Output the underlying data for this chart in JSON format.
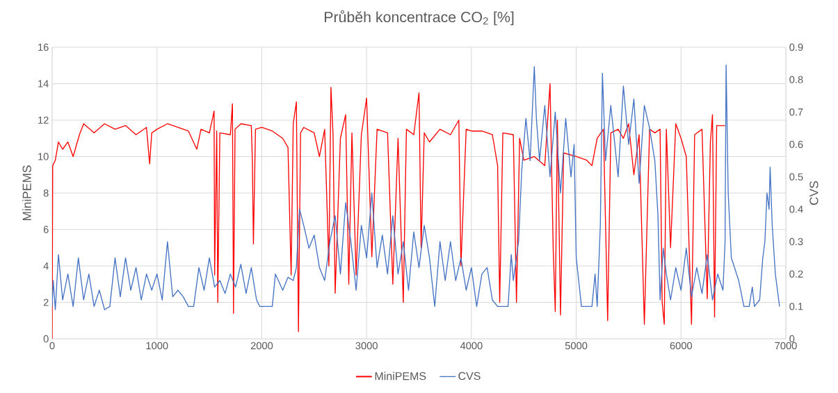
{
  "chart_data": {
    "type": "line",
    "title": "Průběh koncentrace CO$_{2}$ [%]",
    "ylabel": "MiniPEMS",
    "y2label": "CVS",
    "xlim": [
      0,
      7000
    ],
    "xticks": [
      0,
      1000,
      2000,
      3000,
      4000,
      5000,
      6000,
      7000
    ],
    "ylim": [
      0,
      16
    ],
    "yticks": [
      0,
      2,
      4,
      6,
      8,
      10,
      12,
      14,
      16
    ],
    "y2lim": [
      0,
      0.9
    ],
    "y2ticks": [
      0,
      0.1,
      0.2,
      0.3,
      0.4,
      0.5,
      0.6,
      0.7,
      0.8,
      0.9
    ],
    "grid": true,
    "legend": "bottom",
    "marker": "none",
    "line_style": "solid",
    "series": [
      {
        "name": "MiniPEMS",
        "color": "#ff0000",
        "x": [
          0,
          5,
          30,
          60,
          100,
          150,
          200,
          260,
          300,
          400,
          500,
          600,
          700,
          800,
          900,
          930,
          950,
          1000,
          1100,
          1200,
          1300,
          1380,
          1420,
          1500,
          1545,
          1550,
          1570,
          1580,
          1600,
          1700,
          1720,
          1730,
          1745,
          1800,
          1900,
          1910,
          1920,
          1940,
          2000,
          2100,
          2200,
          2250,
          2280,
          2300,
          2330,
          2350,
          2370,
          2400,
          2500,
          2550,
          2600,
          2640,
          2660,
          2680,
          2700,
          2750,
          2800,
          2830,
          2860,
          2900,
          2950,
          3000,
          3050,
          3100,
          3200,
          3250,
          3300,
          3350,
          3380,
          3450,
          3500,
          3520,
          3550,
          3600,
          3700,
          3800,
          3880,
          3900,
          3950,
          4000,
          4100,
          4200,
          4250,
          4270,
          4300,
          4400,
          4430,
          4460,
          4500,
          4600,
          4700,
          4750,
          4780,
          4800,
          4820,
          4850,
          4880,
          5000,
          5100,
          5150,
          5200,
          5260,
          5300,
          5330,
          5400,
          5450,
          5500,
          5550,
          5600,
          5650,
          5700,
          5750,
          5800,
          5820,
          5840,
          5860,
          5900,
          5950,
          6000,
          6050,
          6100,
          6130,
          6200,
          6250,
          6280,
          6300,
          6320,
          6340,
          6420
        ],
        "values": [
          0,
          9.5,
          9.8,
          10.8,
          10.4,
          10.8,
          10.0,
          11.2,
          11.8,
          11.3,
          11.8,
          11.5,
          11.7,
          11.2,
          11.6,
          9.6,
          11.3,
          11.5,
          11.8,
          11.6,
          11.4,
          10.4,
          11.5,
          11.3,
          12.5,
          3.5,
          11.4,
          2.0,
          11.3,
          11.2,
          12.9,
          1.4,
          11.5,
          11.8,
          11.7,
          9.8,
          5.2,
          11.5,
          11.6,
          11.4,
          11.0,
          10.5,
          3.5,
          11.8,
          13.0,
          0.4,
          11.3,
          11.6,
          11.3,
          10.0,
          11.5,
          4.0,
          13.8,
          11.2,
          2.5,
          11.0,
          12.3,
          3.0,
          11.3,
          3.5,
          11.2,
          13.2,
          4.5,
          11.5,
          11.3,
          3.0,
          11.0,
          2.0,
          11.5,
          11.2,
          13.5,
          5.0,
          11.3,
          10.8,
          11.5,
          11.2,
          12.0,
          4.0,
          11.5,
          11.4,
          11.4,
          11.2,
          9.5,
          2.0,
          11.3,
          11.2,
          2.0,
          11.0,
          9.8,
          10.0,
          9.5,
          14.0,
          5.0,
          1.5,
          12.0,
          1.3,
          10.2,
          10.0,
          9.8,
          9.5,
          11.0,
          11.5,
          1.0,
          11.3,
          11.5,
          11.0,
          11.8,
          9.0,
          11.2,
          0.8,
          11.5,
          11.3,
          11.5,
          2.0,
          0.8,
          11.5,
          5.0,
          11.8,
          11.0,
          10.0,
          0.8,
          11.2,
          11.5,
          2.2,
          10.8,
          12.3,
          1.2,
          11.7,
          11.7
        ]
      },
      {
        "name": "CVS",
        "color": "#4472c4",
        "axis": "y2",
        "x": [
          0,
          10,
          30,
          60,
          100,
          150,
          200,
          250,
          300,
          350,
          400,
          450,
          500,
          550,
          600,
          650,
          700,
          750,
          800,
          850,
          900,
          950,
          1000,
          1050,
          1100,
          1150,
          1200,
          1250,
          1300,
          1350,
          1400,
          1450,
          1500,
          1550,
          1600,
          1650,
          1700,
          1750,
          1800,
          1850,
          1900,
          1950,
          1980,
          2100,
          2130,
          2200,
          2250,
          2300,
          2330,
          2360,
          2400,
          2450,
          2500,
          2550,
          2600,
          2650,
          2700,
          2750,
          2800,
          2850,
          2900,
          2950,
          3000,
          3050,
          3100,
          3150,
          3200,
          3250,
          3300,
          3350,
          3400,
          3450,
          3500,
          3550,
          3600,
          3650,
          3700,
          3750,
          3800,
          3850,
          3900,
          3950,
          4000,
          4050,
          4100,
          4150,
          4200,
          4250,
          4350,
          4380,
          4400,
          4450,
          4480,
          4520,
          4560,
          4600,
          4620,
          4650,
          4700,
          4750,
          4800,
          4850,
          4900,
          4950,
          4980,
          5000,
          5050,
          5150,
          5180,
          5200,
          5230,
          5250,
          5280,
          5330,
          5400,
          5450,
          5500,
          5550,
          5600,
          5650,
          5700,
          5750,
          5780,
          5800,
          5830,
          5860,
          5900,
          5950,
          6000,
          6050,
          6100,
          6150,
          6200,
          6250,
          6300,
          6350,
          6400,
          6420,
          6430,
          6450,
          6480,
          6550,
          6600,
          6650,
          6680,
          6700,
          6750,
          6780,
          6800,
          6820,
          6840,
          6850,
          6870,
          6900,
          6920,
          6940
        ],
        "values": [
          0.1,
          0.18,
          0.09,
          0.26,
          0.12,
          0.2,
          0.1,
          0.25,
          0.12,
          0.2,
          0.1,
          0.15,
          0.09,
          0.1,
          0.25,
          0.13,
          0.25,
          0.15,
          0.22,
          0.12,
          0.2,
          0.15,
          0.2,
          0.12,
          0.3,
          0.13,
          0.15,
          0.13,
          0.1,
          0.1,
          0.22,
          0.15,
          0.25,
          0.16,
          0.18,
          0.14,
          0.2,
          0.16,
          0.23,
          0.14,
          0.22,
          0.12,
          0.1,
          0.1,
          0.2,
          0.15,
          0.19,
          0.18,
          0.22,
          0.4,
          0.35,
          0.28,
          0.32,
          0.22,
          0.18,
          0.3,
          0.38,
          0.2,
          0.42,
          0.3,
          0.15,
          0.35,
          0.25,
          0.45,
          0.22,
          0.32,
          0.2,
          0.38,
          0.2,
          0.3,
          0.15,
          0.33,
          0.22,
          0.35,
          0.25,
          0.1,
          0.3,
          0.18,
          0.3,
          0.18,
          0.25,
          0.15,
          0.22,
          0.1,
          0.2,
          0.22,
          0.12,
          0.1,
          0.1,
          0.26,
          0.18,
          0.3,
          0.52,
          0.68,
          0.55,
          0.84,
          0.68,
          0.55,
          0.72,
          0.5,
          0.7,
          0.45,
          0.68,
          0.5,
          0.6,
          0.25,
          0.1,
          0.1,
          0.2,
          0.1,
          0.35,
          0.82,
          0.55,
          0.72,
          0.5,
          0.78,
          0.6,
          0.74,
          0.48,
          0.72,
          0.65,
          0.55,
          0.38,
          0.12,
          0.28,
          0.2,
          0.12,
          0.22,
          0.15,
          0.28,
          0.13,
          0.22,
          0.14,
          0.26,
          0.12,
          0.2,
          0.15,
          0.3,
          0.845,
          0.45,
          0.25,
          0.18,
          0.1,
          0.1,
          0.16,
          0.1,
          0.12,
          0.25,
          0.3,
          0.45,
          0.4,
          0.53,
          0.35,
          0.2,
          0.15,
          0.1
        ]
      }
    ]
  }
}
